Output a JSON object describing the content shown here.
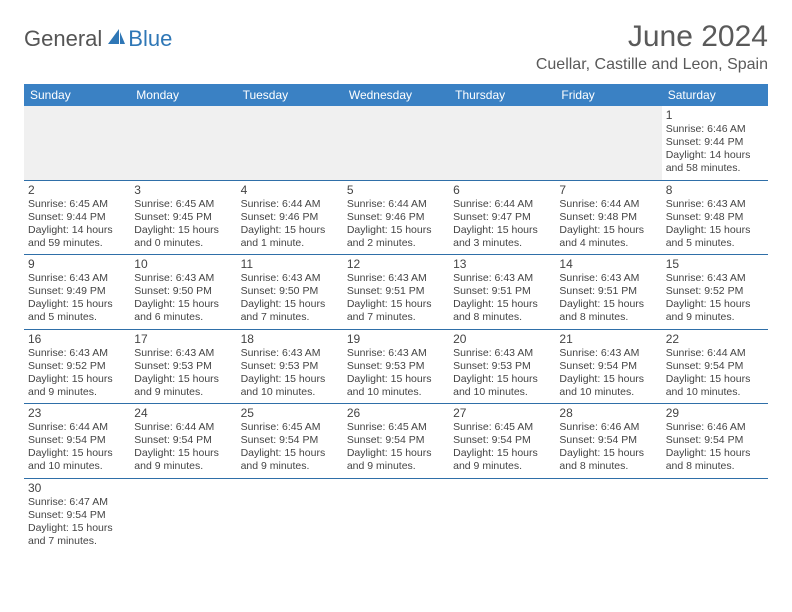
{
  "logo": {
    "part1": "General",
    "part2": "Blue"
  },
  "title": "June 2024",
  "location": "Cuellar, Castille and Leon, Spain",
  "colors": {
    "headerBg": "#3a81c4",
    "headerText": "#ffffff",
    "border": "#2f6fa8",
    "blankRowBg": "#f0f0f0",
    "logoAccent": "#2f77b6"
  },
  "weekdays": [
    "Sunday",
    "Monday",
    "Tuesday",
    "Wednesday",
    "Thursday",
    "Friday",
    "Saturday"
  ],
  "days": [
    {
      "n": 1,
      "sunrise": "6:46 AM",
      "sunset": "9:44 PM",
      "daylight": "14 hours and 58 minutes."
    },
    {
      "n": 2,
      "sunrise": "6:45 AM",
      "sunset": "9:44 PM",
      "daylight": "14 hours and 59 minutes."
    },
    {
      "n": 3,
      "sunrise": "6:45 AM",
      "sunset": "9:45 PM",
      "daylight": "15 hours and 0 minutes."
    },
    {
      "n": 4,
      "sunrise": "6:44 AM",
      "sunset": "9:46 PM",
      "daylight": "15 hours and 1 minute."
    },
    {
      "n": 5,
      "sunrise": "6:44 AM",
      "sunset": "9:46 PM",
      "daylight": "15 hours and 2 minutes."
    },
    {
      "n": 6,
      "sunrise": "6:44 AM",
      "sunset": "9:47 PM",
      "daylight": "15 hours and 3 minutes."
    },
    {
      "n": 7,
      "sunrise": "6:44 AM",
      "sunset": "9:48 PM",
      "daylight": "15 hours and 4 minutes."
    },
    {
      "n": 8,
      "sunrise": "6:43 AM",
      "sunset": "9:48 PM",
      "daylight": "15 hours and 5 minutes."
    },
    {
      "n": 9,
      "sunrise": "6:43 AM",
      "sunset": "9:49 PM",
      "daylight": "15 hours and 5 minutes."
    },
    {
      "n": 10,
      "sunrise": "6:43 AM",
      "sunset": "9:50 PM",
      "daylight": "15 hours and 6 minutes."
    },
    {
      "n": 11,
      "sunrise": "6:43 AM",
      "sunset": "9:50 PM",
      "daylight": "15 hours and 7 minutes."
    },
    {
      "n": 12,
      "sunrise": "6:43 AM",
      "sunset": "9:51 PM",
      "daylight": "15 hours and 7 minutes."
    },
    {
      "n": 13,
      "sunrise": "6:43 AM",
      "sunset": "9:51 PM",
      "daylight": "15 hours and 8 minutes."
    },
    {
      "n": 14,
      "sunrise": "6:43 AM",
      "sunset": "9:51 PM",
      "daylight": "15 hours and 8 minutes."
    },
    {
      "n": 15,
      "sunrise": "6:43 AM",
      "sunset": "9:52 PM",
      "daylight": "15 hours and 9 minutes."
    },
    {
      "n": 16,
      "sunrise": "6:43 AM",
      "sunset": "9:52 PM",
      "daylight": "15 hours and 9 minutes."
    },
    {
      "n": 17,
      "sunrise": "6:43 AM",
      "sunset": "9:53 PM",
      "daylight": "15 hours and 9 minutes."
    },
    {
      "n": 18,
      "sunrise": "6:43 AM",
      "sunset": "9:53 PM",
      "daylight": "15 hours and 10 minutes."
    },
    {
      "n": 19,
      "sunrise": "6:43 AM",
      "sunset": "9:53 PM",
      "daylight": "15 hours and 10 minutes."
    },
    {
      "n": 20,
      "sunrise": "6:43 AM",
      "sunset": "9:53 PM",
      "daylight": "15 hours and 10 minutes."
    },
    {
      "n": 21,
      "sunrise": "6:43 AM",
      "sunset": "9:54 PM",
      "daylight": "15 hours and 10 minutes."
    },
    {
      "n": 22,
      "sunrise": "6:44 AM",
      "sunset": "9:54 PM",
      "daylight": "15 hours and 10 minutes."
    },
    {
      "n": 23,
      "sunrise": "6:44 AM",
      "sunset": "9:54 PM",
      "daylight": "15 hours and 10 minutes."
    },
    {
      "n": 24,
      "sunrise": "6:44 AM",
      "sunset": "9:54 PM",
      "daylight": "15 hours and 9 minutes."
    },
    {
      "n": 25,
      "sunrise": "6:45 AM",
      "sunset": "9:54 PM",
      "daylight": "15 hours and 9 minutes."
    },
    {
      "n": 26,
      "sunrise": "6:45 AM",
      "sunset": "9:54 PM",
      "daylight": "15 hours and 9 minutes."
    },
    {
      "n": 27,
      "sunrise": "6:45 AM",
      "sunset": "9:54 PM",
      "daylight": "15 hours and 9 minutes."
    },
    {
      "n": 28,
      "sunrise": "6:46 AM",
      "sunset": "9:54 PM",
      "daylight": "15 hours and 8 minutes."
    },
    {
      "n": 29,
      "sunrise": "6:46 AM",
      "sunset": "9:54 PM",
      "daylight": "15 hours and 8 minutes."
    },
    {
      "n": 30,
      "sunrise": "6:47 AM",
      "sunset": "9:54 PM",
      "daylight": "15 hours and 7 minutes."
    }
  ],
  "firstDayOffset": 6,
  "labels": {
    "sunrise": "Sunrise:",
    "sunset": "Sunset:",
    "daylight": "Daylight:"
  }
}
